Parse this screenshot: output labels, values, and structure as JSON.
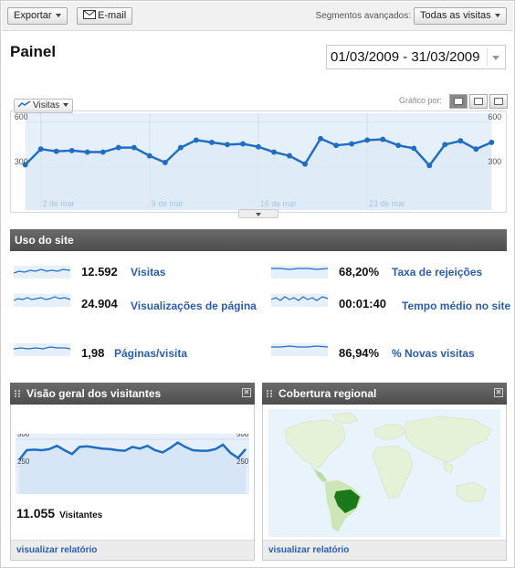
{
  "toolbar": {
    "export_label": "Exportar",
    "email_label": "E-mail",
    "segments_label": "Segmentos avançados:",
    "segments_value": "Todas as visitas"
  },
  "page": {
    "title": "Painel",
    "date_range": "01/03/2009 - 31/03/2009"
  },
  "main_chart_controls": {
    "metric": "Visitas",
    "graph_by_label": "Gráfico por:",
    "graph_by_options": [
      "day",
      "week",
      "month"
    ],
    "graph_by_selected": "day"
  },
  "chart_data": [
    {
      "type": "line",
      "title": "",
      "y_axis_ticks": [
        "600",
        "300"
      ],
      "ylim": [
        0,
        600
      ],
      "x_labels": [
        "2 de mar",
        "9 de mar",
        "16 de mar",
        "23 de mar"
      ],
      "x_label_days": [
        2,
        9,
        16,
        23
      ],
      "x": [
        1,
        2,
        3,
        4,
        5,
        6,
        7,
        8,
        9,
        10,
        11,
        12,
        13,
        14,
        15,
        16,
        17,
        18,
        19,
        20,
        21,
        22,
        23,
        24,
        25,
        26,
        27,
        28,
        29,
        30,
        31
      ],
      "series": [
        {
          "name": "",
          "values": [
            315,
            420,
            405,
            410,
            400,
            400,
            430,
            430,
            375,
            330,
            430,
            480,
            465,
            450,
            455,
            435,
            400,
            375,
            320,
            490,
            445,
            455,
            480,
            485,
            445,
            425,
            310,
            450,
            475,
            420,
            465
          ],
          "color": "#1f6ec3"
        }
      ],
      "grid": true,
      "accent_fill": "#e6f0fa"
    },
    {
      "type": "line",
      "title": "",
      "y_axis_ticks": [
        "500",
        "250"
      ],
      "ylim": [
        0,
        500
      ],
      "series": [
        {
          "name": "",
          "values": [
            310,
            400,
            405,
            400,
            410,
            440,
            400,
            365,
            430,
            435,
            425,
            415,
            410,
            400,
            395,
            430,
            415,
            440,
            400,
            380,
            420,
            470,
            430,
            400,
            395,
            395,
            410,
            450,
            375,
            330,
            410
          ],
          "color": "#1f6ec3"
        }
      ]
    }
  ],
  "site_usage": {
    "header": "Uso do site",
    "metrics": [
      {
        "value": "12.592",
        "label": "Visitas"
      },
      {
        "value": "24.904",
        "label": "Visualizações de página"
      },
      {
        "value": "1,98",
        "label": "Páginas/visita"
      },
      {
        "value": "68,20%",
        "label": "Taxa de rejeições"
      },
      {
        "value": "00:01:40",
        "label": "Tempo médio no site"
      },
      {
        "value": "86,94%",
        "label": "% Novas visitas"
      }
    ]
  },
  "visitors_panel": {
    "title": "Visão geral dos visitantes",
    "total": "11.055",
    "total_label": "Visitantes",
    "link": "visualizar relatório"
  },
  "region_panel": {
    "title": "Cobertura regional",
    "link": "visualizar relatório",
    "highlight_color": "#1a7a1a"
  },
  "colors": {
    "accent": "#1f6ec3",
    "link": "#2a5db0",
    "header_bar": "#585858"
  }
}
